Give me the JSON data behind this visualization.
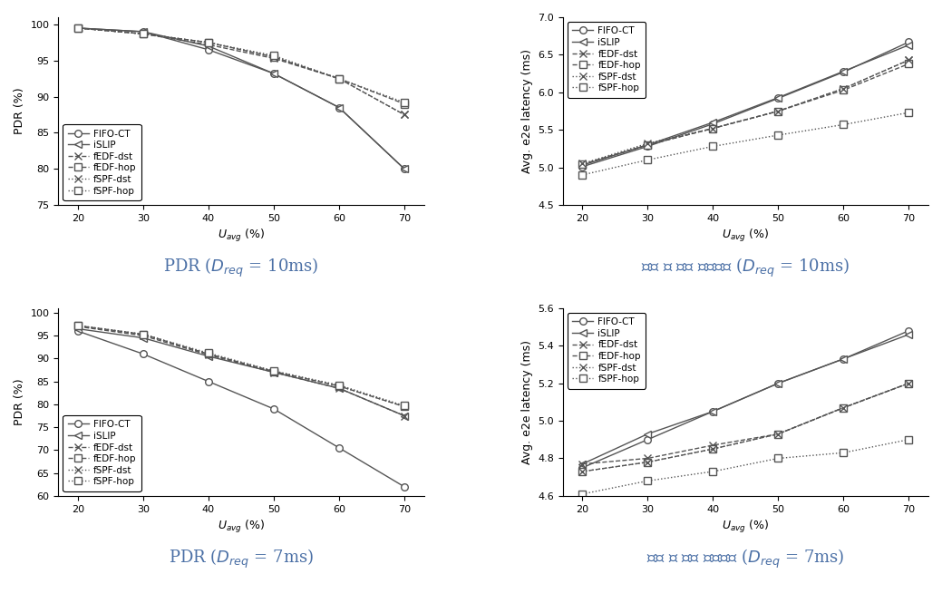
{
  "x": [
    20,
    30,
    40,
    50,
    60,
    70
  ],
  "pdr_10ms": {
    "FIFO-CT": [
      99.5,
      99.0,
      96.5,
      93.2,
      88.5,
      80.0
    ],
    "iSLIP": [
      99.5,
      99.0,
      97.0,
      93.2,
      88.5,
      80.0
    ],
    "fEDF-dst": [
      99.5,
      98.7,
      97.2,
      95.3,
      92.5,
      87.5
    ],
    "fEDF-hop": [
      99.5,
      98.7,
      97.5,
      95.5,
      92.5,
      89.0
    ],
    "fSPF-dst": [
      99.5,
      98.7,
      97.5,
      95.5,
      92.5,
      87.5
    ],
    "fSPF-hop": [
      99.5,
      98.7,
      97.5,
      95.7,
      92.5,
      89.2
    ]
  },
  "lat_10ms": {
    "FIFO-CT": [
      5.01,
      5.28,
      5.58,
      5.92,
      6.27,
      6.67
    ],
    "iSLIP": [
      5.03,
      5.3,
      5.6,
      5.93,
      6.28,
      6.63
    ],
    "fEDF-dst": [
      5.04,
      5.3,
      5.52,
      5.75,
      6.05,
      6.43
    ],
    "fEDF-hop": [
      5.04,
      5.3,
      5.52,
      5.75,
      6.03,
      6.38
    ],
    "fSPF-dst": [
      5.05,
      5.32,
      5.52,
      5.75,
      6.05,
      6.43
    ],
    "fSPF-hop": [
      4.9,
      5.1,
      5.28,
      5.43,
      5.57,
      5.73
    ]
  },
  "pdr_7ms": {
    "FIFO-CT": [
      96.0,
      91.0,
      85.0,
      79.0,
      70.5,
      62.0
    ],
    "iSLIP": [
      96.5,
      94.5,
      90.5,
      87.0,
      83.5,
      77.5
    ],
    "fEDF-dst": [
      97.0,
      95.0,
      90.8,
      87.0,
      83.5,
      77.5
    ],
    "fEDF-hop": [
      97.2,
      95.3,
      91.0,
      87.2,
      84.0,
      79.5
    ],
    "fSPF-dst": [
      97.2,
      95.3,
      91.0,
      87.2,
      84.0,
      79.5
    ],
    "fSPF-hop": [
      97.2,
      95.3,
      91.2,
      87.3,
      84.2,
      79.7
    ]
  },
  "lat_7ms": {
    "FIFO-CT": [
      4.75,
      4.9,
      5.05,
      5.2,
      5.33,
      5.48
    ],
    "iSLIP": [
      4.77,
      4.93,
      5.05,
      5.2,
      5.33,
      5.46
    ],
    "fEDF-dst": [
      4.77,
      4.8,
      4.87,
      4.93,
      5.07,
      5.2
    ],
    "fEDF-hop": [
      4.73,
      4.78,
      4.85,
      4.93,
      5.07,
      5.2
    ],
    "fSPF-dst": [
      4.73,
      4.78,
      4.85,
      4.93,
      5.07,
      5.2
    ],
    "fSPF-hop": [
      4.61,
      4.68,
      4.73,
      4.8,
      4.83,
      4.9
    ]
  },
  "series": [
    {
      "name": "FIFO-CT",
      "marker": "o",
      "linestyle": "-",
      "mfc": "white"
    },
    {
      "name": "iSLIP",
      "marker": "<",
      "linestyle": "-",
      "mfc": "white"
    },
    {
      "name": "fEDF-dst",
      "marker": "x",
      "linestyle": "--",
      "mfc": "auto"
    },
    {
      "name": "fEDF-hop",
      "marker": "s",
      "linestyle": "--",
      "mfc": "white"
    },
    {
      "name": "fSPF-dst",
      "marker": "x",
      "linestyle": ":",
      "mfc": "auto"
    },
    {
      "name": "fSPF-hop",
      "marker": "s",
      "linestyle": ":",
      "mfc": "white"
    }
  ],
  "color": "#555555",
  "ylabel_pdr": "PDR (%)",
  "ylabel_lat": "Avg. e2e latency (ms)",
  "ylim_pdr_10": [
    75,
    101
  ],
  "ylim_pdr_7": [
    60,
    101
  ],
  "ylim_lat_10": [
    4.5,
    7.0
  ],
  "ylim_lat_7": [
    4.6,
    5.6
  ],
  "yticks_pdr_10": [
    75,
    80,
    85,
    90,
    95,
    100
  ],
  "yticks_pdr_7": [
    60,
    65,
    70,
    75,
    80,
    85,
    90,
    95,
    100
  ],
  "yticks_lat_10": [
    4.5,
    5.0,
    5.5,
    6.0,
    6.5,
    7.0
  ],
  "yticks_lat_7": [
    4.6,
    4.8,
    5.0,
    5.2,
    5.4,
    5.6
  ],
  "title_color": "#4a6fa5",
  "title_fontsize": 13
}
